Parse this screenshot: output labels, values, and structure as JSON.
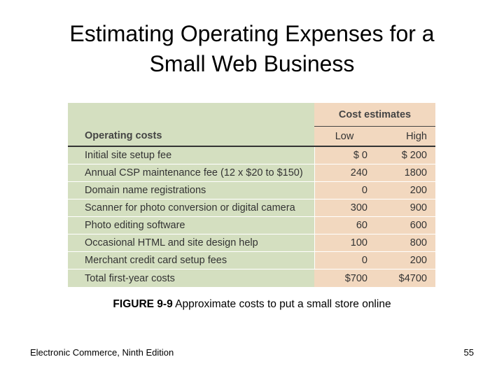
{
  "slide": {
    "title_line1": "Estimating Operating Expenses for a",
    "title_line2": "Small Web Business"
  },
  "table": {
    "group_header": "Cost estimates",
    "label_header": "Operating costs",
    "low_header": "Low",
    "high_header": "High",
    "rows": [
      {
        "label": "Initial site setup fee",
        "low": "$ 0",
        "high": "$ 200"
      },
      {
        "label": "Annual CSP maintenance fee (12 x $20 to $150)",
        "low": "240",
        "high": "1800"
      },
      {
        "label": "Domain name registrations",
        "low": "0",
        "high": "200"
      },
      {
        "label": "Scanner for photo conversion or digital camera",
        "low": "300",
        "high": "900"
      },
      {
        "label": "Photo editing software",
        "low": "60",
        "high": "600"
      },
      {
        "label": "Occasional HTML and site design help",
        "low": "100",
        "high": "800"
      },
      {
        "label": "Merchant credit card setup fees",
        "low": "0",
        "high": "200"
      }
    ],
    "total": {
      "label": "Total first-year costs",
      "low": "$700",
      "high": "$4700"
    },
    "colors": {
      "left_bg": "#d4dfc0",
      "right_bg": "#f2d8bf"
    }
  },
  "caption": {
    "figure_label": "FIGURE 9-9",
    "text": " Approximate costs to put a small store online"
  },
  "footer": {
    "book": "Electronic Commerce, Ninth Edition",
    "page_number": "55"
  }
}
